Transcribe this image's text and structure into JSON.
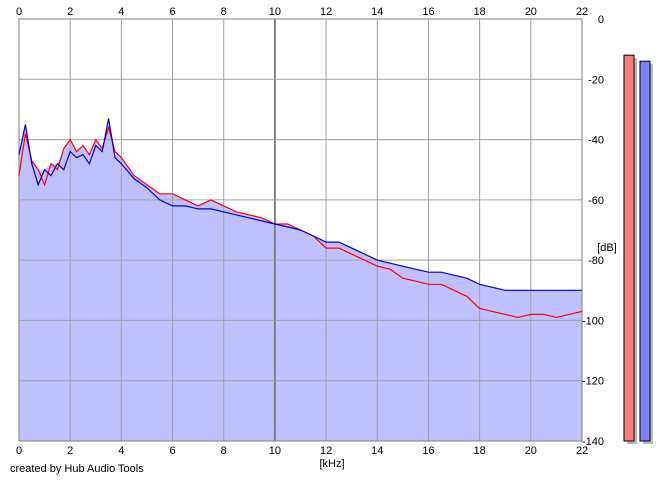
{
  "footer": {
    "credit": "created by Hub Audio Tools"
  },
  "chart_data": {
    "type": "area",
    "xlabel": "[kHz]",
    "ylabel": "[dB]",
    "xlim": [
      0,
      22
    ],
    "ylim": [
      -140,
      0
    ],
    "x_ticks": [
      0,
      2,
      4,
      6,
      8,
      10,
      12,
      14,
      16,
      18,
      20,
      22
    ],
    "y_ticks": [
      0,
      -20,
      -40,
      -60,
      -80,
      -100,
      -120,
      -140
    ],
    "grid": true,
    "series": [
      {
        "color": "#ff0000",
        "x": [
          0,
          0.25,
          0.5,
          0.75,
          1,
          1.25,
          1.5,
          1.75,
          2,
          2.25,
          2.5,
          2.75,
          3,
          3.25,
          3.5,
          3.75,
          4,
          4.5,
          5,
          5.5,
          6,
          6.5,
          7,
          7.5,
          8,
          8.5,
          9,
          9.5,
          10,
          10.5,
          11,
          11.5,
          12,
          12.5,
          13,
          13.5,
          14,
          14.5,
          15,
          15.5,
          16,
          16.5,
          17,
          17.5,
          18,
          18.5,
          19,
          19.5,
          20,
          20.5,
          21,
          21.5,
          22
        ],
        "y": [
          -52,
          -38,
          -47,
          -50,
          -55,
          -48,
          -50,
          -43,
          -40,
          -44,
          -42,
          -45,
          -40,
          -43,
          -36,
          -44,
          -46,
          -52,
          -55,
          -58,
          -58,
          -60,
          -62,
          -60,
          -62,
          -64,
          -65,
          -66,
          -68,
          -68,
          -70,
          -72,
          -76,
          -76,
          -78,
          -80,
          -82,
          -83,
          -86,
          -87,
          -88,
          -88,
          -90,
          -92,
          -96,
          -97,
          -98,
          -99,
          -98,
          -98,
          -99,
          -98,
          -97
        ]
      },
      {
        "color": "#0000cc",
        "x": [
          0,
          0.25,
          0.5,
          0.75,
          1,
          1.25,
          1.5,
          1.75,
          2,
          2.25,
          2.5,
          2.75,
          3,
          3.25,
          3.5,
          3.75,
          4,
          4.5,
          5,
          5.5,
          6,
          6.5,
          7,
          7.5,
          8,
          8.5,
          9,
          9.5,
          10,
          10.5,
          11,
          11.5,
          12,
          12.5,
          13,
          13.5,
          14,
          14.5,
          15,
          15.5,
          16,
          16.5,
          17,
          17.5,
          18,
          18.5,
          19,
          19.5,
          20,
          20.5,
          21,
          21.5,
          22
        ],
        "y": [
          -45,
          -35,
          -48,
          -55,
          -50,
          -52,
          -48,
          -50,
          -44,
          -46,
          -45,
          -48,
          -42,
          -44,
          -33,
          -46,
          -48,
          -53,
          -56,
          -60,
          -62,
          -62,
          -63,
          -63,
          -64,
          -65,
          -66,
          -67,
          -68,
          -69,
          -70,
          -72,
          -74,
          -74,
          -76,
          -78,
          -80,
          -81,
          -82,
          -83,
          -84,
          -84,
          -85,
          -86,
          -88,
          -89,
          -90,
          -90,
          -90,
          -90,
          -90,
          -90,
          -90
        ]
      }
    ],
    "fill_color": "#c0c0ff",
    "level_meters": [
      {
        "color": "#ff7f7f",
        "value_db": -12
      },
      {
        "color": "#8080ff",
        "value_db": -14
      }
    ]
  }
}
